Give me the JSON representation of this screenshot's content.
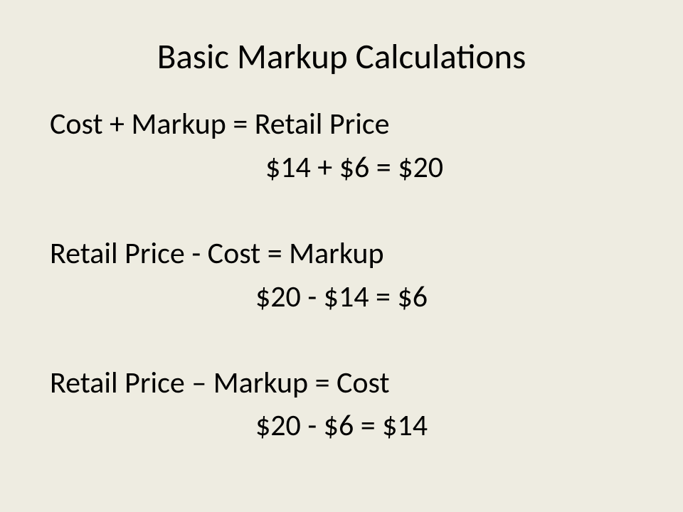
{
  "slide": {
    "type": "infographic",
    "background_color": "#eeece1",
    "text_color": "#000000",
    "font_family": "Calibri",
    "title": "Basic Markup Calculations",
    "title_fontsize": 49,
    "body_fontsize": 42,
    "formulas": [
      {
        "formula": "Cost + Markup = Retail Price",
        "example": "$14  +  $6   =   $20"
      },
      {
        "formula": "Retail Price - Cost = Markup",
        "example": "$20 - $14 = $6"
      },
      {
        "formula": "Retail Price – Markup = Cost",
        "example": "$20 - $6 = $14"
      }
    ]
  }
}
